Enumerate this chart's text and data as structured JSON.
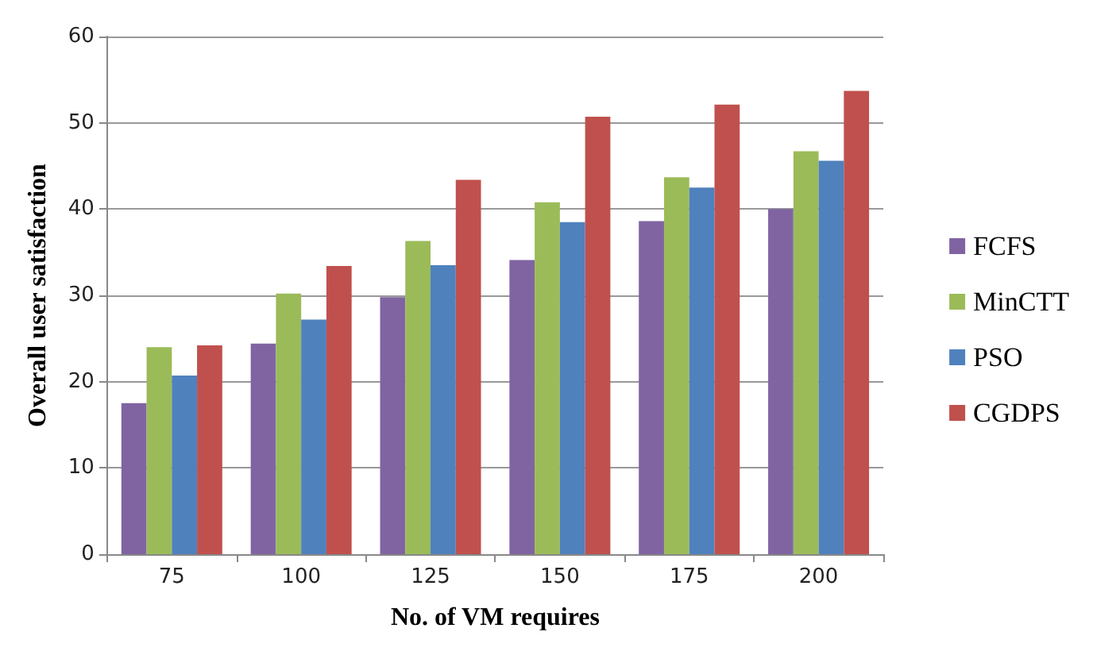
{
  "chart_data": {
    "type": "bar",
    "xlabel": "No. of VM requires",
    "ylabel": "Overall user satisfaction",
    "categories": [
      "75",
      "100",
      "125",
      "150",
      "175",
      "200"
    ],
    "series": [
      {
        "name": "FCFS",
        "color": "#8064a2",
        "values": [
          17.5,
          24.4,
          29.8,
          34.1,
          38.6,
          40
        ]
      },
      {
        "name": "MinCTT",
        "color": "#9bbb59",
        "values": [
          24,
          30.2,
          36.3,
          40.8,
          43.7,
          46.7
        ]
      },
      {
        "name": "PSO",
        "color": "#4f81bd",
        "values": [
          20.7,
          27.2,
          33.5,
          38.5,
          42.5,
          45.6
        ]
      },
      {
        "name": "CGDPS",
        "color": "#c0504d",
        "values": [
          24.2,
          33.4,
          43.4,
          50.7,
          52.1,
          53.7
        ]
      }
    ],
    "ylim": [
      0,
      60
    ],
    "yticks": [
      0,
      10,
      20,
      30,
      40,
      50,
      60
    ],
    "grid": "y",
    "legend": "right"
  }
}
